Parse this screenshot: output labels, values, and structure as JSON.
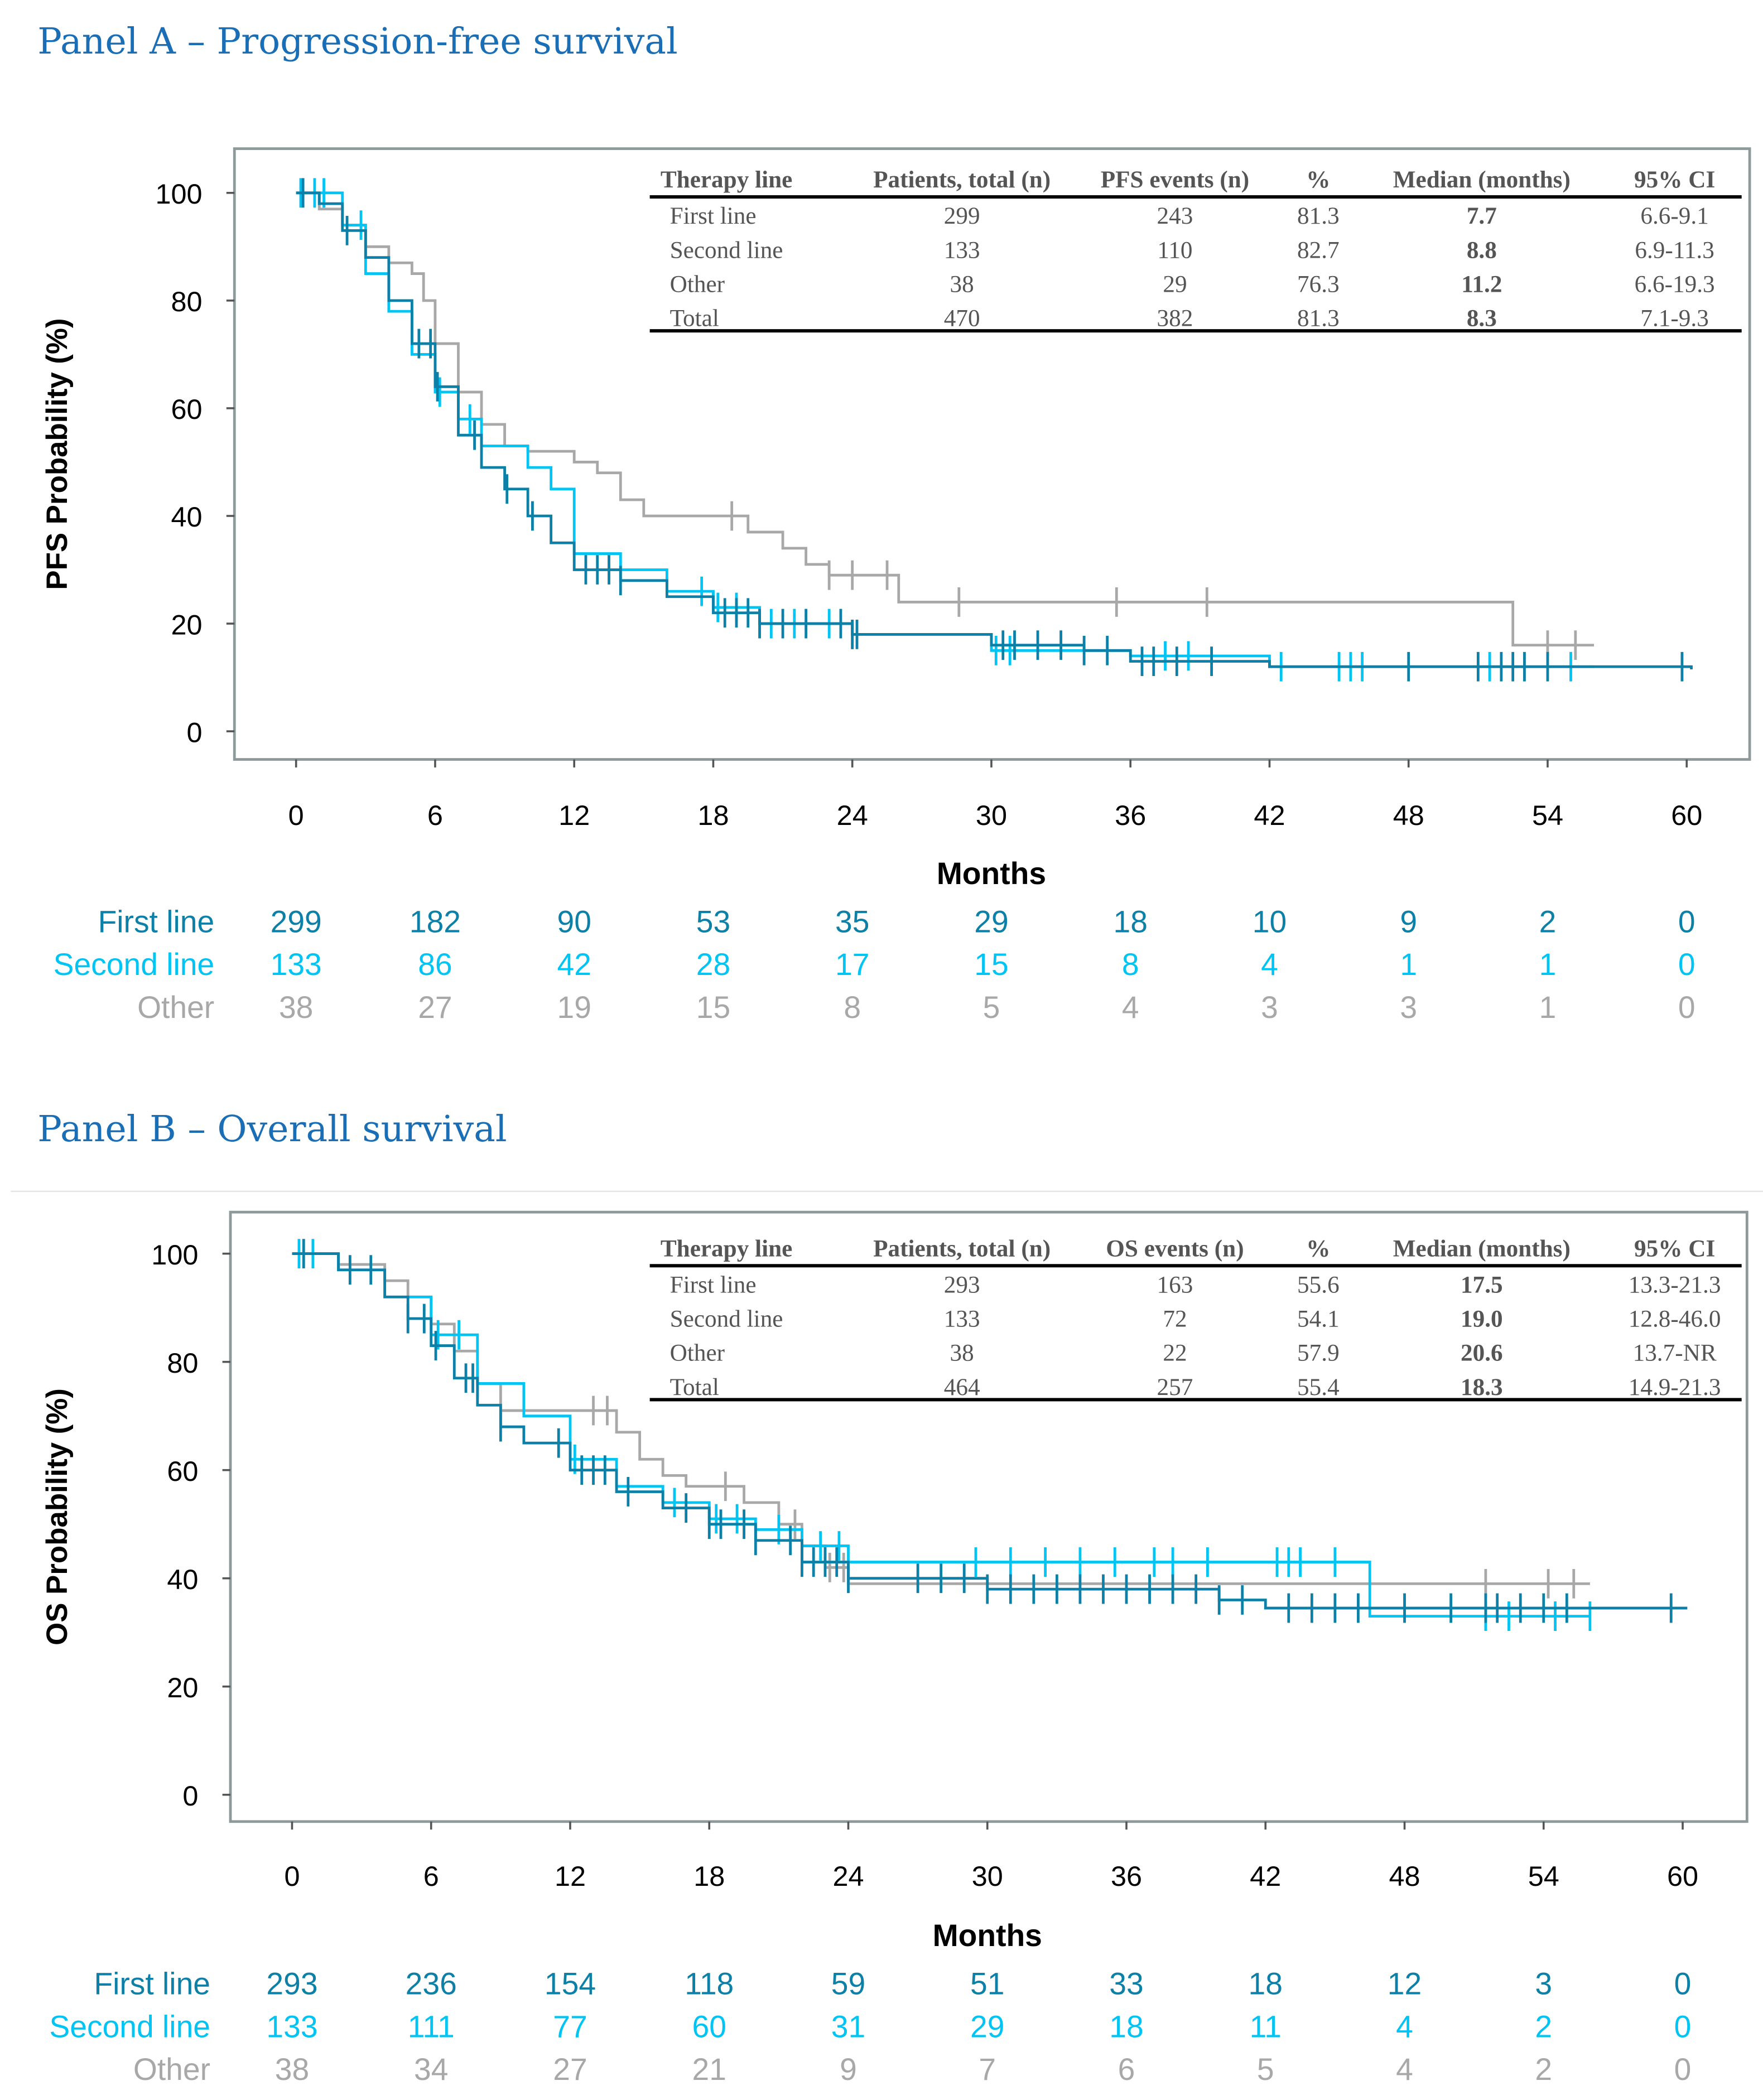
{
  "colors": {
    "first_line": "#0d80a8",
    "second_line": "#00c4f4",
    "other": "#a8a8a8",
    "title": "#1a6eb5"
  },
  "panels": [
    {
      "title": "Panel A – Progression-free survival",
      "chart_data": {
        "type": "line",
        "title": "Panel A – Progression-free survival",
        "xlabel": "Months",
        "ylabel": "PFS Probability (%)",
        "xlim": [
          0,
          60
        ],
        "ylim": [
          0,
          100
        ],
        "xticks": [
          "0",
          "6",
          "12",
          "18",
          "24",
          "30",
          "36",
          "42",
          "48",
          "54",
          "60"
        ],
        "yticks": [
          "0",
          "20",
          "40",
          "60",
          "80",
          "100"
        ],
        "series": [
          {
            "name": "First line",
            "color_key": "first_line",
            "x": [
              0,
              1,
              2,
              3,
              4,
              5,
              6,
              7,
              8,
              9,
              10,
              11,
              12,
              14,
              16,
              18,
              20,
              24,
              30,
              34,
              36,
              42,
              60.2
            ],
            "y": [
              100,
              98,
              93,
              88,
              80,
              72,
              64,
              55,
              49,
              45,
              40,
              35,
              30,
              28,
              25,
              22,
              20,
              18,
              16,
              15,
              13,
              12,
              11.5
            ],
            "censored": [
              0.3,
              2.2,
              5.3,
              5.8,
              6.1,
              7.7,
              9.1,
              10.2,
              12.5,
              13,
              13.5,
              14,
              18.5,
              19,
              19.5,
              20,
              21,
              22,
              23.5,
              24,
              24.2,
              30.5,
              31,
              32,
              33,
              34,
              35,
              36.5,
              37,
              38,
              39.5,
              48,
              51,
              52,
              52.5,
              53,
              54,
              59.8
            ]
          },
          {
            "name": "Second line",
            "color_key": "second_line",
            "x": [
              0,
              2,
              3,
              4,
              5,
              6,
              7,
              8,
              10,
              11,
              12,
              14,
              16,
              18,
              20,
              24,
              30,
              36,
              42,
              56
            ],
            "y": [
              100,
              94,
              85,
              78,
              70,
              63,
              58,
              53,
              49,
              45,
              33,
              30,
              26,
              23,
              20,
              18,
              15,
              14,
              12,
              12
            ],
            "censored": [
              0.2,
              0.8,
              1.2,
              2.8,
              6.2,
              7.5,
              17.5,
              18.2,
              19,
              20.5,
              21.5,
              23,
              24,
              30.2,
              30.8,
              37.5,
              38.5,
              42.5,
              45,
              45.5,
              46,
              51.5,
              55
            ]
          },
          {
            "name": "Other",
            "color_key": "other",
            "x": [
              0,
              1,
              2,
              3,
              4,
              5,
              5.5,
              6,
              7,
              8,
              9,
              10,
              12,
              13,
              14,
              15,
              19,
              19.5,
              21,
              22,
              23,
              26,
              52.5,
              52.5,
              56
            ],
            "y": [
              100,
              97,
              94,
              90,
              87,
              85,
              80,
              72,
              63,
              57,
              53,
              52,
              50,
              48,
              43,
              40,
              40,
              37,
              34,
              31,
              29,
              24,
              24,
              16,
              16
            ],
            "censored": [
              18.8,
              23,
              24,
              25.5,
              28.6,
              35.4,
              39.3,
              54,
              55.2
            ]
          }
        ]
      },
      "table": {
        "headers": [
          "Therapy line",
          "Patients, total (n)",
          "PFS events (n)",
          "%",
          "Median (months)",
          "95% CI"
        ],
        "rows": [
          [
            "First line",
            "299",
            "243",
            "81.3",
            "7.7",
            "6.6-9.1"
          ],
          [
            "Second line",
            "133",
            "110",
            "82.7",
            "8.8",
            "6.9-11.3"
          ],
          [
            "Other",
            "38",
            "29",
            "76.3",
            "11.2",
            "6.6-19.3"
          ],
          [
            "Total",
            "470",
            "382",
            "81.3",
            "8.3",
            "7.1-9.3"
          ]
        ]
      },
      "risk_table": [
        {
          "label": "First line",
          "color_key": "first_line",
          "values": [
            "299",
            "182",
            "90",
            "53",
            "35",
            "29",
            "18",
            "10",
            "9",
            "2",
            "0"
          ]
        },
        {
          "label": "Second line",
          "color_key": "second_line",
          "values": [
            "133",
            "86",
            "42",
            "28",
            "17",
            "15",
            "8",
            "4",
            "1",
            "1",
            "0"
          ]
        },
        {
          "label": "Other",
          "color_key": "other",
          "values": [
            "38",
            "27",
            "19",
            "15",
            "8",
            "5",
            "4",
            "3",
            "3",
            "1",
            "0"
          ]
        }
      ]
    },
    {
      "title": "Panel B – Overall survival",
      "chart_data": {
        "type": "line",
        "title": "Panel B – Overall survival",
        "xlabel": "Months",
        "ylabel": "OS Probability (%)",
        "xlim": [
          0,
          60
        ],
        "ylim": [
          0,
          100
        ],
        "xticks": [
          "0",
          "6",
          "12",
          "18",
          "24",
          "30",
          "36",
          "42",
          "48",
          "54",
          "60"
        ],
        "yticks": [
          "0",
          "20",
          "40",
          "60",
          "80",
          "100"
        ],
        "series": [
          {
            "name": "First line",
            "color_key": "first_line",
            "x": [
              0,
              2,
              4,
              5,
              6,
              7,
              8,
              9,
              10,
              12,
              14,
              16,
              18,
              20,
              22,
              24,
              30,
              36,
              40,
              42,
              60.2
            ],
            "y": [
              100,
              97,
              92,
              88,
              83,
              77,
              72,
              68,
              65,
              60,
              56,
              53,
              50,
              47,
              43,
              40,
              38,
              38,
              36,
              34.5,
              34.5
            ],
            "censored": [
              0.5,
              2.5,
              3.4,
              5,
              5.7,
              6.2,
              7.5,
              7.8,
              9,
              11.5,
              12.5,
              13,
              13.5,
              14.5,
              17,
              18,
              18.5,
              19.5,
              20,
              21.5,
              22,
              22.5,
              23,
              23.5,
              24,
              27,
              28,
              29,
              30,
              31,
              32,
              33,
              34,
              35,
              36,
              37,
              38,
              39,
              40,
              41,
              43,
              44,
              45,
              46,
              48,
              50,
              51.5,
              52,
              53,
              54,
              55,
              59.5
            ]
          },
          {
            "name": "Second line",
            "color_key": "second_line",
            "x": [
              0,
              2,
              4,
              6,
              8,
              10,
              12,
              14,
              16,
              18,
              20,
              22,
              24,
              46.5,
              46.5,
              56
            ],
            "y": [
              100,
              97,
              92,
              85,
              76,
              70,
              62,
              57,
              54,
              51,
              49,
              46,
              43,
              43,
              33,
              33
            ],
            "censored": [
              0.3,
              0.9,
              6.3,
              7.2,
              8,
              12.2,
              16.5,
              18.3,
              19.2,
              21,
              22.8,
              23.6,
              29.5,
              31,
              32.5,
              34,
              35.5,
              37.2,
              38,
              39.5,
              42.5,
              43,
              43.5,
              45,
              51.5,
              52.5,
              54.5,
              56
            ]
          },
          {
            "name": "Other",
            "color_key": "other",
            "x": [
              0,
              2,
              4,
              5,
              6,
              7,
              8,
              9,
              13,
              14,
              15,
              16,
              17,
              19,
              19.5,
              21,
              22,
              23,
              24,
              56
            ],
            "y": [
              100,
              98,
              95,
              92,
              87,
              82,
              76,
              71,
              71,
              67,
              62,
              59,
              57,
              57,
              54,
              50,
              46,
              42,
              39,
              39
            ],
            "censored": [
              13,
              13.6,
              18.7,
              21.7,
              23.2,
              23.8,
              51.5,
              54.2,
              55.3
            ]
          }
        ]
      },
      "table": {
        "headers": [
          "Therapy line",
          "Patients, total (n)",
          "OS events (n)",
          "%",
          "Median (months)",
          "95% CI"
        ],
        "rows": [
          [
            "First line",
            "293",
            "163",
            "55.6",
            "17.5",
            "13.3-21.3"
          ],
          [
            "Second line",
            "133",
            "72",
            "54.1",
            "19.0",
            "12.8-46.0"
          ],
          [
            "Other",
            "38",
            "22",
            "57.9",
            "20.6",
            "13.7-NR"
          ],
          [
            "Total",
            "464",
            "257",
            "55.4",
            "18.3",
            "14.9-21.3"
          ]
        ]
      },
      "risk_table": [
        {
          "label": "First line",
          "color_key": "first_line",
          "values": [
            "293",
            "236",
            "154",
            "118",
            "59",
            "51",
            "33",
            "18",
            "12",
            "3",
            "0"
          ]
        },
        {
          "label": "Second line",
          "color_key": "second_line",
          "values": [
            "133",
            "111",
            "77",
            "60",
            "31",
            "29",
            "18",
            "11",
            "4",
            "2",
            "0"
          ]
        },
        {
          "label": "Other",
          "color_key": "other",
          "values": [
            "38",
            "34",
            "27",
            "21",
            "9",
            "7",
            "6",
            "5",
            "4",
            "2",
            "0"
          ]
        }
      ]
    }
  ]
}
